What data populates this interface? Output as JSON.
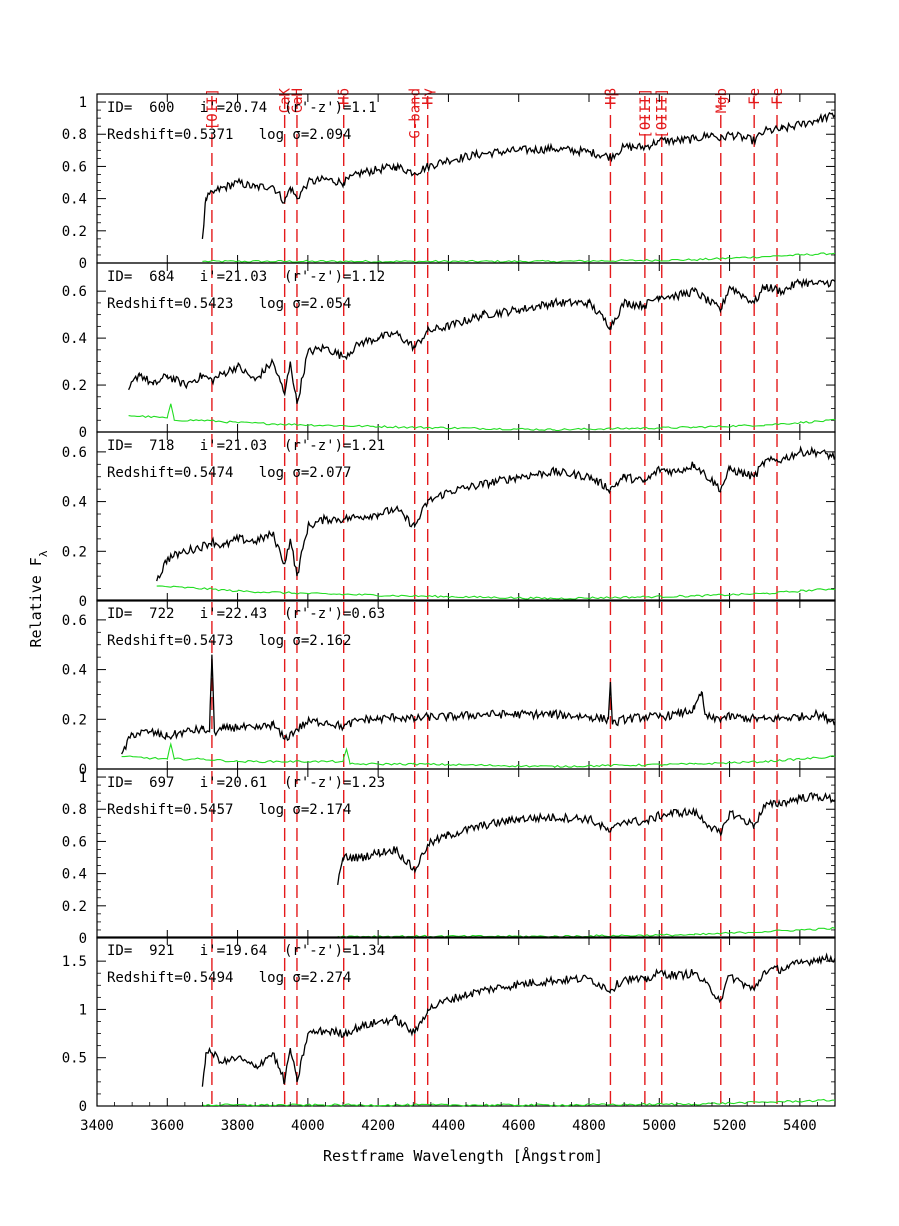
{
  "chart_data": {
    "type": "line",
    "xlabel": "Restframe Wavelength [Ångstrom]",
    "ylabel": "Relative F",
    "ylabel_sub": "λ",
    "xlim": [
      3400,
      5500
    ],
    "x_ticks": [
      3400,
      3600,
      3800,
      4000,
      4200,
      4400,
      4600,
      4800,
      5000,
      5200,
      5400
    ],
    "colors": {
      "spectrum": "#000000",
      "error": "#22dd22",
      "lines": "#e41a1c"
    },
    "spectral_lines": [
      {
        "label": "[OII]",
        "x": 3727
      },
      {
        "label": "CaK",
        "x": 3934
      },
      {
        "label": "CaH",
        "x": 3969
      },
      {
        "label": "Hδ",
        "x": 4102
      },
      {
        "label": "G-band",
        "x": 4304
      },
      {
        "label": "Hγ",
        "x": 4341
      },
      {
        "label": "Hβ",
        "x": 4861
      },
      {
        "label": "[OIII]",
        "x": 4959
      },
      {
        "label": "[OIII]",
        "x": 5007
      },
      {
        "label": "Mgb",
        "x": 5175
      },
      {
        "label": "Fe",
        "x": 5270
      },
      {
        "label": "Fe",
        "x": 5335
      }
    ],
    "panels": [
      {
        "id_text": "ID=  600   i'=20.74  (r'-z')=1.1",
        "redshift_text": "Redshift=0.5371   log σ=2.094",
        "ylim": [
          0,
          1.05
        ],
        "y_ticks": [
          0,
          0.2,
          0.4,
          0.6,
          0.8,
          1
        ],
        "y_tick_labels": [
          "0",
          "0.2",
          "0.4",
          "0.6",
          "0.8",
          "1"
        ],
        "spectrum": {
          "x": [
            3700,
            3710,
            3740,
            3800,
            3850,
            3900,
            3934,
            3950,
            3969,
            4000,
            4050,
            4102,
            4150,
            4200,
            4250,
            4304,
            4341,
            4400,
            4500,
            4600,
            4700,
            4800,
            4861,
            4900,
            4959,
            5000,
            5050,
            5100,
            5150,
            5175,
            5200,
            5270,
            5300,
            5350,
            5400,
            5450,
            5500
          ],
          "y": [
            0.15,
            0.4,
            0.45,
            0.5,
            0.47,
            0.48,
            0.38,
            0.47,
            0.4,
            0.5,
            0.52,
            0.5,
            0.56,
            0.58,
            0.6,
            0.56,
            0.6,
            0.64,
            0.68,
            0.7,
            0.71,
            0.69,
            0.66,
            0.72,
            0.72,
            0.76,
            0.76,
            0.77,
            0.8,
            0.77,
            0.8,
            0.76,
            0.82,
            0.83,
            0.86,
            0.89,
            0.92
          ]
        },
        "error": {
          "x": [
            3700,
            4000,
            4300,
            4700,
            5100,
            5300,
            5400,
            5500
          ],
          "y": [
            0.01,
            0.01,
            0.01,
            0.01,
            0.02,
            0.04,
            0.05,
            0.06
          ]
        }
      },
      {
        "id_text": "ID=  684   i'=21.03  (r'-z')=1.12",
        "redshift_text": "Redshift=0.5423   log σ=2.054",
        "ylim": [
          0,
          0.72
        ],
        "y_ticks": [
          0,
          0.2,
          0.4,
          0.6
        ],
        "y_tick_labels": [
          "0",
          "0.2",
          "0.4",
          "0.6"
        ],
        "spectrum": {
          "x": [
            3490,
            3520,
            3560,
            3600,
            3650,
            3700,
            3727,
            3760,
            3800,
            3850,
            3900,
            3934,
            3950,
            3969,
            4000,
            4050,
            4102,
            4150,
            4200,
            4250,
            4304,
            4341,
            4400,
            4500,
            4600,
            4700,
            4800,
            4861,
            4900,
            4959,
            5000,
            5050,
            5100,
            5175,
            5200,
            5270,
            5300,
            5350,
            5400,
            5450,
            5500
          ],
          "y": [
            0.18,
            0.25,
            0.2,
            0.24,
            0.2,
            0.24,
            0.22,
            0.25,
            0.28,
            0.22,
            0.3,
            0.16,
            0.3,
            0.12,
            0.34,
            0.36,
            0.32,
            0.38,
            0.4,
            0.42,
            0.36,
            0.43,
            0.45,
            0.5,
            0.52,
            0.55,
            0.55,
            0.45,
            0.55,
            0.54,
            0.58,
            0.58,
            0.6,
            0.52,
            0.62,
            0.55,
            0.62,
            0.6,
            0.64,
            0.63,
            0.64
          ]
        },
        "error": {
          "x": [
            3490,
            3600,
            3610,
            3620,
            3700,
            3800,
            4000,
            4300,
            4700,
            5100,
            5300,
            5400,
            5500
          ],
          "y": [
            0.07,
            0.06,
            0.12,
            0.05,
            0.05,
            0.04,
            0.03,
            0.02,
            0.01,
            0.02,
            0.03,
            0.04,
            0.05
          ]
        }
      },
      {
        "id_text": "ID=  718   i'=21.03  (r'-z')=1.21",
        "redshift_text": "Redshift=0.5474   log σ=2.077",
        "ylim": [
          0,
          0.68
        ],
        "y_ticks": [
          0,
          0.2,
          0.4,
          0.6
        ],
        "y_tick_labels": [
          "0",
          "0.2",
          "0.4",
          "0.6"
        ],
        "spectrum": {
          "x": [
            3570,
            3600,
            3650,
            3700,
            3727,
            3760,
            3800,
            3850,
            3900,
            3934,
            3950,
            3969,
            4000,
            4050,
            4102,
            4150,
            4200,
            4250,
            4304,
            4341,
            4400,
            4500,
            4600,
            4700,
            4800,
            4861,
            4900,
            4959,
            5000,
            5050,
            5100,
            5175,
            5200,
            5270,
            5300,
            5350,
            5400,
            5450,
            5500
          ],
          "y": [
            0.08,
            0.17,
            0.2,
            0.22,
            0.24,
            0.22,
            0.25,
            0.24,
            0.27,
            0.15,
            0.25,
            0.1,
            0.3,
            0.33,
            0.33,
            0.34,
            0.35,
            0.37,
            0.3,
            0.4,
            0.44,
            0.47,
            0.5,
            0.52,
            0.5,
            0.45,
            0.5,
            0.48,
            0.53,
            0.52,
            0.55,
            0.45,
            0.53,
            0.5,
            0.56,
            0.57,
            0.6,
            0.6,
            0.58
          ]
        },
        "error": {
          "x": [
            3570,
            3700,
            3800,
            4000,
            4300,
            4700,
            5100,
            5300,
            5400,
            5500
          ],
          "y": [
            0.06,
            0.05,
            0.04,
            0.03,
            0.02,
            0.01,
            0.02,
            0.03,
            0.04,
            0.05
          ]
        }
      },
      {
        "id_text": "ID=  722   i'=22.43  (r'-z')=0.63",
        "redshift_text": "Redshift=0.5473   log σ=2.162",
        "ylim": [
          0,
          0.68
        ],
        "y_ticks": [
          0,
          0.2,
          0.4,
          0.6
        ],
        "y_tick_labels": [
          "0",
          "0.2",
          "0.4",
          "0.6"
        ],
        "spectrum": {
          "x": [
            3470,
            3500,
            3550,
            3600,
            3650,
            3700,
            3720,
            3727,
            3734,
            3760,
            3800,
            3850,
            3900,
            3934,
            3969,
            4000,
            4050,
            4102,
            4150,
            4200,
            4250,
            4304,
            4341,
            4400,
            4500,
            4600,
            4700,
            4800,
            4855,
            4861,
            4867,
            4900,
            4959,
            5000,
            5050,
            5100,
            5120,
            5130,
            5150,
            5200,
            5300,
            5400,
            5450,
            5500
          ],
          "y": [
            0.06,
            0.14,
            0.15,
            0.13,
            0.15,
            0.16,
            0.15,
            0.46,
            0.15,
            0.16,
            0.17,
            0.16,
            0.18,
            0.12,
            0.16,
            0.19,
            0.19,
            0.17,
            0.2,
            0.2,
            0.21,
            0.2,
            0.21,
            0.21,
            0.22,
            0.22,
            0.22,
            0.21,
            0.2,
            0.35,
            0.18,
            0.2,
            0.21,
            0.21,
            0.22,
            0.24,
            0.31,
            0.22,
            0.2,
            0.21,
            0.2,
            0.21,
            0.22,
            0.19
          ]
        },
        "error": {
          "x": [
            3470,
            3600,
            3610,
            3620,
            3700,
            3800,
            4000,
            4100,
            4110,
            4120,
            4300,
            4700,
            5100,
            5300,
            5400,
            5500
          ],
          "y": [
            0.05,
            0.04,
            0.1,
            0.04,
            0.04,
            0.03,
            0.03,
            0.03,
            0.08,
            0.02,
            0.02,
            0.01,
            0.02,
            0.03,
            0.04,
            0.05
          ]
        }
      },
      {
        "id_text": "ID=  697   i'=20.61  (r'-z')=1.23",
        "redshift_text": "Redshift=0.5457   log σ=2.174",
        "ylim": [
          0,
          1.05
        ],
        "y_ticks": [
          0,
          0.2,
          0.4,
          0.6,
          0.8,
          1
        ],
        "y_tick_labels": [
          "0",
          "0.2",
          "0.4",
          "0.6",
          "0.8",
          "1"
        ],
        "spectrum": {
          "x": [
            4085,
            4100,
            4150,
            4200,
            4250,
            4304,
            4341,
            4400,
            4500,
            4600,
            4700,
            4800,
            4861,
            4900,
            4959,
            5000,
            5050,
            5100,
            5175,
            5200,
            5270,
            5300,
            5350,
            5400,
            5450,
            5500
          ],
          "y": [
            0.33,
            0.5,
            0.5,
            0.53,
            0.55,
            0.42,
            0.58,
            0.64,
            0.7,
            0.74,
            0.75,
            0.74,
            0.66,
            0.73,
            0.72,
            0.76,
            0.78,
            0.78,
            0.64,
            0.78,
            0.7,
            0.82,
            0.84,
            0.87,
            0.88,
            0.86
          ]
        },
        "error": {
          "x": [
            4085,
            4300,
            4700,
            5100,
            5300,
            5400,
            5500
          ],
          "y": [
            0.01,
            0.01,
            0.01,
            0.02,
            0.04,
            0.05,
            0.06
          ]
        }
      },
      {
        "id_text": "ID=  921   i'=19.64  (r'-z')=1.34",
        "redshift_text": "Redshift=0.5494   log σ=2.274",
        "ylim": [
          0,
          1.75
        ],
        "y_ticks": [
          0,
          0.5,
          1,
          1.5
        ],
        "y_tick_labels": [
          "0",
          "0.5",
          "1",
          "1.5"
        ],
        "spectrum": {
          "x": [
            3700,
            3710,
            3727,
            3760,
            3800,
            3850,
            3900,
            3934,
            3950,
            3969,
            4000,
            4050,
            4102,
            4150,
            4200,
            4250,
            4304,
            4341,
            4400,
            4500,
            4600,
            4700,
            4800,
            4861,
            4900,
            4959,
            5000,
            5050,
            5100,
            5175,
            5200,
            5270,
            5300,
            5350,
            5400,
            5450,
            5500
          ],
          "y": [
            0.2,
            0.55,
            0.55,
            0.45,
            0.5,
            0.4,
            0.55,
            0.25,
            0.6,
            0.25,
            0.75,
            0.78,
            0.75,
            0.82,
            0.87,
            0.9,
            0.75,
            1.0,
            1.1,
            1.2,
            1.26,
            1.3,
            1.32,
            1.2,
            1.32,
            1.3,
            1.38,
            1.35,
            1.38,
            1.1,
            1.35,
            1.2,
            1.4,
            1.42,
            1.48,
            1.52,
            1.53
          ]
        },
        "error": {
          "x": [
            3700,
            4000,
            4300,
            4700,
            5100,
            5300,
            5400,
            5500
          ],
          "y": [
            0.01,
            0.01,
            0.01,
            0.01,
            0.02,
            0.04,
            0.05,
            0.06
          ]
        }
      }
    ]
  }
}
